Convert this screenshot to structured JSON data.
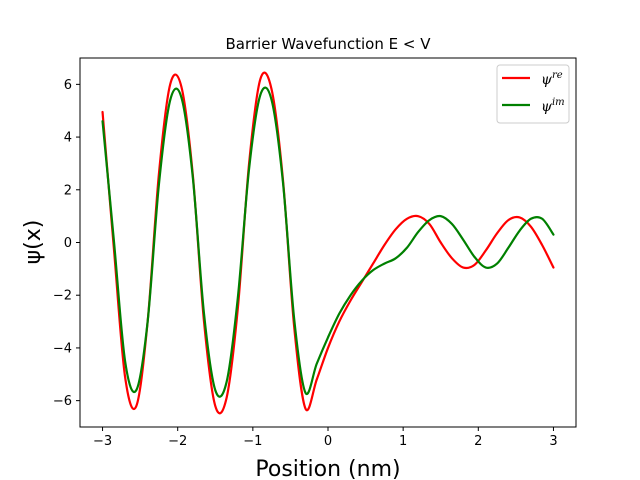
{
  "chart_data": {
    "type": "line",
    "title": "Barrier Wavefunction E < V",
    "xlabel": "Position (nm)",
    "ylabel": "ψ(x)",
    "xlim": [
      -3.3,
      3.3
    ],
    "ylim": [
      -7.0,
      7.0
    ],
    "xticks": [
      -3,
      -2,
      -1,
      0,
      1,
      2,
      3
    ],
    "yticks": [
      -6,
      -4,
      -2,
      0,
      2,
      4,
      6
    ],
    "legend_position": "top-right",
    "series": [
      {
        "name": "ψ^re",
        "legend_base": "ψ",
        "legend_sup": "re",
        "color": "#ff0000",
        "x": [
          -3.0,
          -2.85,
          -2.7,
          -2.55,
          -2.4,
          -2.25,
          -2.1,
          -1.95,
          -1.8,
          -1.65,
          -1.5,
          -1.35,
          -1.2,
          -1.05,
          -0.9,
          -0.75,
          -0.6,
          -0.45,
          -0.3,
          -0.15,
          0.0,
          0.15,
          0.3,
          0.45,
          0.6,
          0.75,
          0.9,
          1.05,
          1.2,
          1.35,
          1.5,
          1.65,
          1.8,
          1.95,
          2.1,
          2.25,
          2.4,
          2.55,
          2.7,
          2.85,
          3.0
        ],
        "y": [
          4.95,
          -0.2,
          -5.1,
          -6.2,
          -3.0,
          2.6,
          6.0,
          5.9,
          2.6,
          -3.0,
          -6.2,
          -5.9,
          -2.5,
          3.0,
          6.2,
          5.8,
          2.4,
          -3.2,
          -6.3,
          -5.2,
          -4.0,
          -3.0,
          -2.2,
          -1.5,
          -0.8,
          -0.1,
          0.5,
          0.9,
          1.0,
          0.7,
          0.0,
          -0.6,
          -0.95,
          -0.85,
          -0.3,
          0.35,
          0.85,
          0.95,
          0.6,
          -0.1,
          -0.95
        ]
      },
      {
        "name": "ψ^im",
        "legend_base": "ψ",
        "legend_sup": "im",
        "color": "#008000",
        "x": [
          -3.0,
          -2.85,
          -2.7,
          -2.55,
          -2.4,
          -2.25,
          -2.1,
          -1.95,
          -1.8,
          -1.65,
          -1.5,
          -1.35,
          -1.2,
          -1.05,
          -0.9,
          -0.75,
          -0.6,
          -0.45,
          -0.3,
          -0.15,
          0.0,
          0.15,
          0.3,
          0.45,
          0.6,
          0.75,
          0.9,
          1.05,
          1.2,
          1.35,
          1.5,
          1.65,
          1.8,
          1.95,
          2.1,
          2.25,
          2.4,
          2.55,
          2.7,
          2.85,
          3.0
        ],
        "y": [
          4.6,
          0.1,
          -4.5,
          -5.6,
          -3.0,
          2.2,
          5.4,
          5.5,
          2.5,
          -2.7,
          -5.6,
          -5.3,
          -2.1,
          2.8,
          5.6,
          5.4,
          2.3,
          -2.9,
          -5.7,
          -4.6,
          -3.6,
          -2.7,
          -2.0,
          -1.45,
          -1.05,
          -0.8,
          -0.6,
          -0.2,
          0.4,
          0.85,
          1.0,
          0.7,
          0.1,
          -0.55,
          -0.95,
          -0.8,
          -0.2,
          0.45,
          0.9,
          0.9,
          0.3
        ]
      }
    ]
  }
}
